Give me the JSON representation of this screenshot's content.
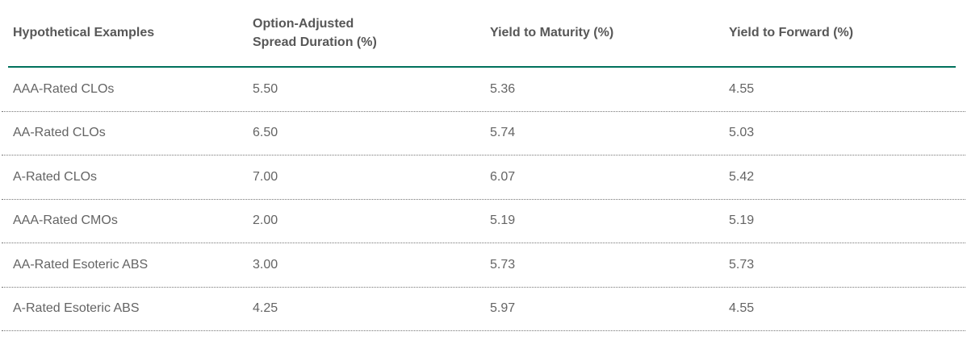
{
  "colors": {
    "accent_rule": "#00715C",
    "header_text": "#575757",
    "body_text": "#646464",
    "row_divider": "#767676"
  },
  "table": {
    "columns": [
      {
        "label": "Hypothetical Examples"
      },
      {
        "label": "Option-Adjusted\nSpread Duration (%)"
      },
      {
        "label": "Yield to Maturity (%)"
      },
      {
        "label": "Yield to Forward (%)"
      }
    ],
    "rows": [
      {
        "label": "AAA-Rated CLOs",
        "oas_duration": "5.50",
        "ytm": "5.36",
        "ytf": "4.55"
      },
      {
        "label": "AA-Rated CLOs",
        "oas_duration": "6.50",
        "ytm": "5.74",
        "ytf": "5.03"
      },
      {
        "label": "A-Rated CLOs",
        "oas_duration": "7.00",
        "ytm": "6.07",
        "ytf": "5.42"
      },
      {
        "label": "AAA-Rated CMOs",
        "oas_duration": "2.00",
        "ytm": "5.19",
        "ytf": "5.19"
      },
      {
        "label": "AA-Rated Esoteric ABS",
        "oas_duration": "3.00",
        "ytm": "5.73",
        "ytf": "5.73"
      },
      {
        "label": "A-Rated Esoteric ABS",
        "oas_duration": "4.25",
        "ytm": "5.97",
        "ytf": "4.55"
      }
    ]
  }
}
